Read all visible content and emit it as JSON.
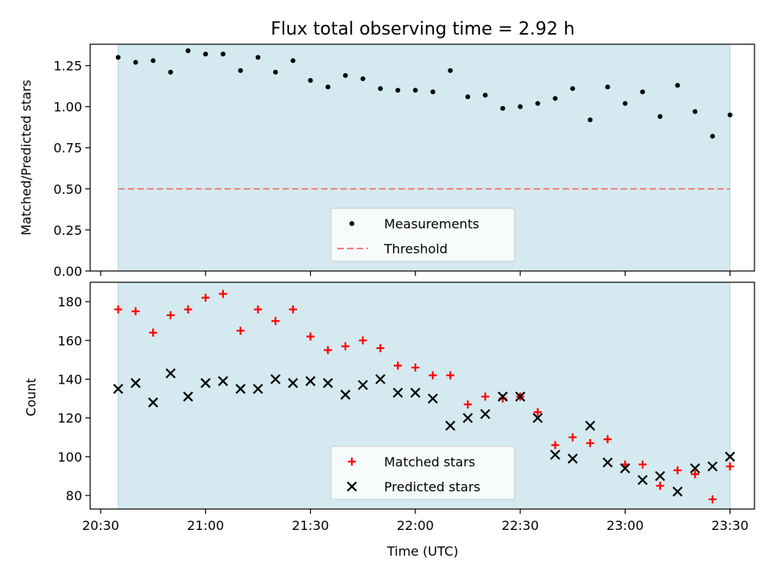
{
  "chart_data": [
    {
      "type": "scatter",
      "title": "Flux total observing time = 2.92 h",
      "xlabel": "",
      "ylabel": "Matched/Predicted stars",
      "xlim": [
        "20:27",
        "23:37"
      ],
      "ylim": [
        0,
        1.38
      ],
      "yticks": [
        0,
        0.25,
        0.5,
        0.75,
        1.0,
        1.25
      ],
      "ytick_labels": [
        "0.00",
        "0.25",
        "0.50",
        "0.75",
        "1.00",
        "1.25"
      ],
      "shaded_span": [
        "20:35",
        "23:30"
      ],
      "x": [
        "20:35",
        "20:40",
        "20:45",
        "20:50",
        "20:55",
        "21:00",
        "21:05",
        "21:10",
        "21:15",
        "21:20",
        "21:25",
        "21:30",
        "21:35",
        "21:40",
        "21:45",
        "21:50",
        "21:55",
        "22:00",
        "22:05",
        "22:10",
        "22:15",
        "22:20",
        "22:25",
        "22:30",
        "22:35",
        "22:40",
        "22:45",
        "22:50",
        "22:55",
        "23:00",
        "23:05",
        "23:10",
        "23:15",
        "23:20",
        "23:25",
        "23:30"
      ],
      "series": [
        {
          "name": "Measurements",
          "marker": "dot",
          "color": "#000000",
          "values": [
            1.3,
            1.27,
            1.28,
            1.21,
            1.34,
            1.32,
            1.32,
            1.22,
            1.3,
            1.21,
            1.28,
            1.16,
            1.12,
            1.19,
            1.17,
            1.11,
            1.1,
            1.1,
            1.09,
            1.22,
            1.06,
            1.07,
            0.99,
            1.0,
            1.02,
            1.05,
            1.11,
            0.92,
            1.12,
            1.02,
            1.09,
            0.94,
            1.13,
            0.97,
            0.82,
            0.95
          ]
        },
        {
          "name": "Threshold",
          "marker": "dashed-line",
          "color": "#f08080",
          "values": [
            0.5
          ]
        }
      ],
      "legend": "lower-center"
    },
    {
      "type": "scatter",
      "title": "",
      "xlabel": "Time (UTC)",
      "ylabel": "Count",
      "xlim": [
        "20:27",
        "23:37"
      ],
      "ylim": [
        73,
        190
      ],
      "yticks": [
        80,
        100,
        120,
        140,
        160,
        180
      ],
      "ytick_labels": [
        "80",
        "100",
        "120",
        "140",
        "160",
        "180"
      ],
      "xticks": [
        "20:30",
        "21:00",
        "21:30",
        "22:00",
        "22:30",
        "23:00",
        "23:30"
      ],
      "shaded_span": [
        "20:35",
        "23:30"
      ],
      "x": [
        "20:35",
        "20:40",
        "20:45",
        "20:50",
        "20:55",
        "21:00",
        "21:05",
        "21:10",
        "21:15",
        "21:20",
        "21:25",
        "21:30",
        "21:35",
        "21:40",
        "21:45",
        "21:50",
        "21:55",
        "22:00",
        "22:05",
        "22:10",
        "22:15",
        "22:20",
        "22:25",
        "22:30",
        "22:35",
        "22:40",
        "22:45",
        "22:50",
        "22:55",
        "23:00",
        "23:05",
        "23:10",
        "23:15",
        "23:20",
        "23:25",
        "23:30"
      ],
      "series": [
        {
          "name": "Matched stars",
          "marker": "plus",
          "color": "#ff0000",
          "values": [
            176,
            175,
            164,
            173,
            176,
            182,
            184,
            165,
            176,
            170,
            176,
            162,
            155,
            157,
            160,
            156,
            147,
            146,
            142,
            142,
            127,
            131,
            130,
            131,
            123,
            106,
            110,
            107,
            109,
            96,
            96,
            85,
            93,
            91,
            78,
            95
          ]
        },
        {
          "name": "Predicted stars",
          "marker": "x",
          "color": "#000000",
          "values": [
            135,
            138,
            128,
            143,
            131,
            138,
            139,
            135,
            135,
            140,
            138,
            139,
            138,
            132,
            137,
            140,
            133,
            133,
            130,
            116,
            120,
            122,
            131,
            131,
            120,
            101,
            99,
            116,
            97,
            94,
            88,
            90,
            82,
            94,
            95,
            100
          ]
        }
      ],
      "legend": "lower-center"
    }
  ],
  "colors": {
    "shade": "#d4eaf0",
    "shade_edge": "#b3d6df",
    "matched": "#ff0000",
    "predicted": "#000000",
    "threshold": "#f08080"
  }
}
